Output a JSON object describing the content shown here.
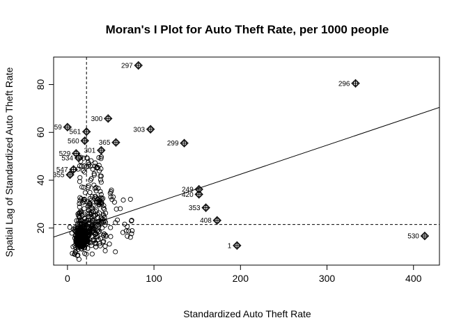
{
  "chart_data": {
    "type": "scatter",
    "title": "Moran's I Plot for Auto Theft Rate, per 1000 people",
    "xlabel": "Standardized Auto Theft Rate",
    "ylabel": "Spatial Lag of Standardized Auto Theft Rate",
    "xlim": [
      -16,
      430
    ],
    "ylim": [
      4.5,
      91.5
    ],
    "xticks": [
      "0",
      "100",
      "200",
      "300",
      "400"
    ],
    "yticks": [
      "20",
      "40",
      "60",
      "80"
    ],
    "xtick_values": [
      0,
      100,
      200,
      300,
      400
    ],
    "ytick_values": [
      20,
      40,
      60,
      80
    ],
    "mean_x": 22,
    "mean_y": 21.5,
    "regression": {
      "intercept": 18.2,
      "slope": 0.1215
    },
    "influential_points": [
      {
        "label": "297",
        "x": 82,
        "y": 88
      },
      {
        "label": "296",
        "x": 333,
        "y": 80.5
      },
      {
        "label": "300",
        "x": 47,
        "y": 65.8
      },
      {
        "label": "303",
        "x": 96,
        "y": 61.3
      },
      {
        "label": "59",
        "x": 0,
        "y": 62.2
      },
      {
        "label": "561",
        "x": 22,
        "y": 60.3
      },
      {
        "label": "560",
        "x": 20,
        "y": 56.5
      },
      {
        "label": "365",
        "x": 56,
        "y": 55.8
      },
      {
        "label": "299",
        "x": 135,
        "y": 55.5
      },
      {
        "label": "301",
        "x": 39,
        "y": 52.5
      },
      {
        "label": "529",
        "x": 10,
        "y": 51.2
      },
      {
        "label": "534",
        "x": 13,
        "y": 49.3
      },
      {
        "label": "547",
        "x": 7,
        "y": 44.5
      },
      {
        "label": "355",
        "x": 3,
        "y": 42.3
      },
      {
        "label": "249",
        "x": 152,
        "y": 36.2
      },
      {
        "label": "420",
        "x": 152,
        "y": 34.1
      },
      {
        "label": "353",
        "x": 160,
        "y": 28.5
      },
      {
        "label": "408",
        "x": 173,
        "y": 23.2
      },
      {
        "label": "530",
        "x": 413,
        "y": 16.7
      },
      {
        "label": "1",
        "x": 196,
        "y": 12.7
      }
    ]
  }
}
